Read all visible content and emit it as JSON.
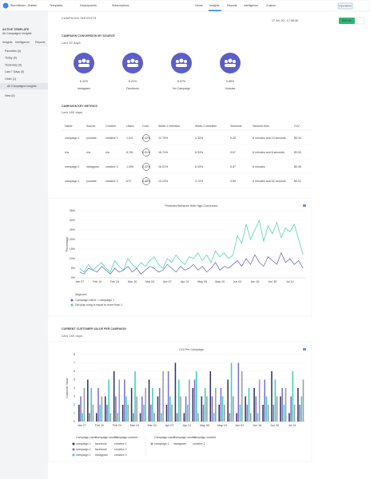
{
  "nav": {
    "brand": "StormBears - Builder",
    "menus": [
      "Templates",
      "Deployments",
      "Subscriptions"
    ],
    "tabs": [
      "Home",
      "Insights",
      "Reports",
      "Intelligence",
      "Custom"
    ],
    "active_tab": 1,
    "button": "Operators"
  },
  "sidebar": {
    "section_label": "ACTIVE TEMPLATE",
    "template": "All Campaigns Insights",
    "tabs": [
      "Insights",
      "Intelligence",
      "Reports"
    ],
    "items": [
      "Favorites (0)",
      "Today (0)",
      "Yesterday (0)",
      "Last 7 Days (0)",
      "Older (1)"
    ],
    "selected": "All Campaigns Insights",
    "items_after": [
      "New (0)"
    ]
  },
  "header": {
    "title": "CAMPAIGN INSIGHTS",
    "date": "17 Jul, 20 - 17:08:36",
    "refresh": "Refresh"
  },
  "conversion": {
    "title": "CAMPAIGN CONVERSION BY SOURCE",
    "subtitle": "Last 30 days",
    "color": "#5b5fc7",
    "items": [
      {
        "value": "6.42%",
        "label": "Instagram"
      },
      {
        "value": "6.21%",
        "label": "Facebook"
      },
      {
        "value": "5.57%",
        "label": "No Campaign"
      },
      {
        "value": "3.88%",
        "label": "Youtube"
      }
    ]
  },
  "metrics": {
    "title": "CAMPAIGN KEY METRICS",
    "subtitle": "Last 180 days",
    "columns": [
      "Name",
      "Source",
      "Content",
      "Users",
      "Conv",
      "Week-1 retention",
      "Week-2 retention",
      "Sessions",
      "Session-time",
      "CLV"
    ],
    "rows": [
      [
        "campaign 1",
        "youtube",
        "creative 2",
        "1,011",
        "4.42%",
        "12.75%",
        "4.35%",
        "5.45",
        "8 minutes and 13 seconds",
        "$0.34"
      ],
      [
        "n/a",
        "n/a",
        "n/a",
        "8,781",
        "3.91%",
        "16.74%",
        "6.34%",
        "5.67",
        "8 minutes and 6 seconds",
        "$0.53"
      ],
      [
        "campaign 1",
        "instagram",
        "creative 3",
        "1,499",
        "6.42%",
        "16.01%",
        "6.34%",
        "5.67",
        "8 minutes",
        "$0.45"
      ],
      [
        "campaign 1",
        "youtube",
        "creative 3",
        "672",
        "3.88%",
        "13.24%",
        "3.72%",
        "3.55",
        "6 minutes and 52 seconds",
        "$0.51"
      ]
    ]
  },
  "clv": {
    "title": "CURRENT CUSTOMER VALUE PER CAMPAIGN",
    "subtitle": "Last 180 days"
  },
  "chart_data": [
    {
      "type": "line",
      "title": "Predicted Behavior With High Conversion",
      "y_label": "Percentage",
      "legend_title": "Segment",
      "categories": [
        "Jan 27",
        null,
        null,
        null,
        "Feb 10",
        null,
        null,
        null,
        "Feb 24",
        null,
        null,
        null,
        "Mar 10",
        null,
        null,
        null,
        "Mar 24",
        null,
        null,
        null,
        "Apr 07",
        null,
        null,
        null,
        "Apr 21",
        null,
        null,
        null,
        "May 05",
        null,
        null,
        null,
        "May 19",
        null,
        null,
        null,
        "Jun 02",
        null,
        null,
        null,
        "Jun 16",
        null,
        null,
        null,
        "Jun 30",
        null,
        null,
        null,
        "Jul 14",
        null,
        null,
        null
      ],
      "series": [
        {
          "name": "Campaign name = campaign 1",
          "color": "#5b5fc7",
          "values": [
            3,
            2,
            5,
            4,
            3,
            6,
            4,
            2,
            5,
            3,
            4,
            6,
            3,
            5,
            2,
            4,
            6,
            5,
            3,
            4,
            7,
            5,
            3,
            6,
            4,
            5,
            7,
            4,
            6,
            3,
            5,
            8,
            4,
            6,
            5,
            7,
            9,
            6,
            10,
            7,
            12,
            8,
            6,
            11,
            9,
            7,
            13,
            8,
            10,
            7,
            9,
            5
          ]
        },
        {
          "name": "Did play song is equal to more than 1",
          "color": "#3ecfb2",
          "values": [
            5,
            3,
            7,
            4,
            6,
            8,
            5,
            3,
            9,
            6,
            4,
            10,
            7,
            5,
            8,
            6,
            9,
            11,
            7,
            5,
            10,
            8,
            12,
            9,
            7,
            11,
            10,
            13,
            9,
            12,
            8,
            14,
            11,
            13,
            10,
            12,
            22,
            18,
            28,
            20,
            25,
            30,
            19,
            27,
            23,
            29,
            21,
            26,
            24,
            28,
            20,
            12
          ]
        }
      ],
      "ylim": [
        0,
        35
      ],
      "yticks": [
        {
          "value": 0,
          "label": "0%"
        },
        {
          "value": 5,
          "label": "5%"
        },
        {
          "value": 10,
          "label": "10%"
        },
        {
          "value": 15,
          "label": "15%"
        },
        {
          "value": 20,
          "label": "20%"
        },
        {
          "value": 25,
          "label": "25%"
        },
        {
          "value": 30,
          "label": "30%"
        },
        {
          "value": 35,
          "label": "35%"
        }
      ],
      "grid": true
    },
    {
      "type": "bar",
      "title": "CLV Per Campaign",
      "y_label": "Customer Value",
      "legend_columns": [
        "Campaign name",
        "Campaign source",
        "Campaign content"
      ],
      "categories": [
        "Jan 27",
        null,
        "Feb 10",
        null,
        "Feb 24",
        null,
        "Mar 10",
        null,
        "Mar 24",
        null,
        "Apr 07",
        null,
        "Apr 21",
        null,
        "May 05",
        null,
        "May 19",
        null,
        "Jun 02",
        null,
        "Jun 16",
        null,
        "Jun 30",
        null,
        "Jul 14",
        null
      ],
      "series": [
        {
          "name": "campaign 1",
          "source": "facebook",
          "content": "creative 1",
          "color": "#2c3560",
          "values": [
            2,
            5,
            1,
            3,
            6,
            2,
            4,
            1,
            5,
            3,
            2,
            7,
            1,
            4,
            3,
            6,
            2,
            5,
            1,
            3,
            4,
            2,
            6,
            3,
            1,
            4
          ]
        },
        {
          "name": "campaign 1",
          "source": "facebook",
          "content": "creative 2",
          "color": "#7b6fd6",
          "values": [
            3,
            1,
            4,
            2,
            3,
            5,
            1,
            3,
            2,
            4,
            6,
            1,
            3,
            5,
            2,
            3,
            4,
            1,
            7,
            2,
            3,
            5,
            2,
            4,
            3,
            2
          ]
        },
        {
          "name": "campaign 1",
          "source": "instagram",
          "content": "creative 3",
          "color": "#3ecfb2",
          "values": [
            1,
            4,
            2,
            5,
            1,
            3,
            6,
            2,
            4,
            1,
            3,
            5,
            2,
            6,
            4,
            1,
            3,
            7,
            2,
            4,
            1,
            3,
            5,
            2,
            6,
            3
          ]
        },
        {
          "name": "campaign 1",
          "source": "instagram",
          "content": "creative 2",
          "color": "#9a9aa6",
          "values": [
            4,
            2,
            3,
            1,
            5,
            2,
            3,
            4,
            1,
            6,
            2,
            3,
            5,
            1,
            3,
            4,
            2,
            3,
            6,
            1,
            5,
            2,
            3,
            4,
            2,
            5
          ]
        }
      ],
      "ylim": [
        0,
        8
      ],
      "yticks": [
        0,
        1,
        2,
        3,
        4,
        5,
        6,
        7,
        8
      ],
      "grid": true
    }
  ]
}
